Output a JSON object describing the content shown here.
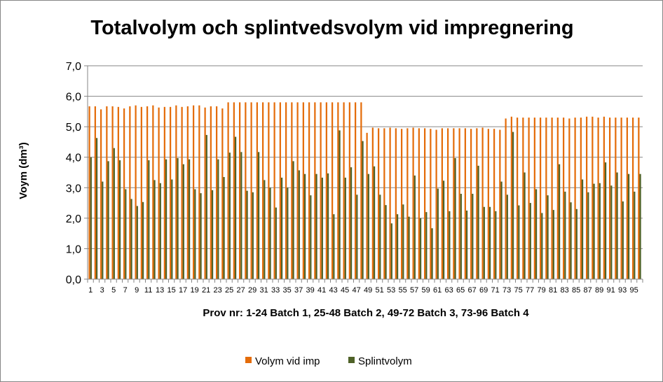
{
  "chart_data": {
    "type": "bar",
    "title": "Totalvolym och splintvedsvolym vid impregnering",
    "xlabel": "Prov nr:  1-24 Batch 1, 25-48 Batch 2, 49-72 Batch 3, 73-96 Batch 4",
    "ylabel": "Voym (dm³)",
    "ylim": [
      0,
      7
    ],
    "yticks": [
      "0,0",
      "1,0",
      "2,0",
      "3,0",
      "4,0",
      "5,0",
      "6,0",
      "7,0"
    ],
    "grid": true,
    "legend_position": "bottom",
    "categories": [
      1,
      2,
      3,
      4,
      5,
      6,
      7,
      8,
      9,
      10,
      11,
      12,
      13,
      14,
      15,
      16,
      17,
      18,
      19,
      20,
      21,
      22,
      23,
      24,
      25,
      26,
      27,
      28,
      29,
      30,
      31,
      32,
      33,
      34,
      35,
      36,
      37,
      38,
      39,
      40,
      41,
      42,
      43,
      44,
      45,
      46,
      47,
      48,
      49,
      50,
      51,
      52,
      53,
      54,
      55,
      56,
      57,
      58,
      59,
      60,
      61,
      62,
      63,
      64,
      65,
      66,
      67,
      68,
      69,
      70,
      71,
      72,
      73,
      74,
      75,
      76,
      77,
      78,
      79,
      80,
      81,
      82,
      83,
      84,
      85,
      86,
      87,
      88,
      89,
      90,
      91,
      92,
      93,
      94,
      95,
      96
    ],
    "tick_labels": [
      "1",
      "3",
      "5",
      "7",
      "9",
      "11",
      "13",
      "15",
      "17",
      "19",
      "21",
      "23",
      "25",
      "27",
      "29",
      "31",
      "33",
      "35",
      "37",
      "39",
      "41",
      "43",
      "45",
      "47",
      "49",
      "51",
      "53",
      "55",
      "57",
      "59",
      "61",
      "63",
      "65",
      "67",
      "69",
      "71",
      "73",
      "75",
      "77",
      "79",
      "81",
      "83",
      "85",
      "87",
      "89",
      "91",
      "93",
      "95"
    ],
    "series": [
      {
        "name": "Volym vid imp",
        "color": "#E46C0A",
        "values": [
          5.67,
          5.67,
          5.57,
          5.67,
          5.67,
          5.65,
          5.6,
          5.67,
          5.7,
          5.65,
          5.67,
          5.7,
          5.63,
          5.65,
          5.65,
          5.7,
          5.65,
          5.67,
          5.7,
          5.7,
          5.63,
          5.67,
          5.67,
          5.6,
          5.8,
          5.8,
          5.8,
          5.8,
          5.8,
          5.8,
          5.8,
          5.8,
          5.8,
          5.8,
          5.8,
          5.8,
          5.8,
          5.8,
          5.8,
          5.8,
          5.8,
          5.8,
          5.8,
          5.8,
          5.8,
          5.8,
          5.8,
          5.8,
          4.8,
          4.97,
          4.95,
          4.95,
          4.97,
          4.95,
          4.93,
          4.95,
          4.97,
          4.95,
          4.95,
          4.93,
          4.9,
          4.95,
          4.95,
          4.95,
          4.95,
          4.95,
          4.93,
          4.95,
          4.97,
          4.93,
          4.93,
          4.9,
          5.27,
          5.33,
          5.3,
          5.3,
          5.3,
          5.3,
          5.3,
          5.3,
          5.3,
          5.3,
          5.3,
          5.27,
          5.3,
          5.3,
          5.33,
          5.33,
          5.3,
          5.33,
          5.3,
          5.3,
          5.3,
          5.3,
          5.3,
          5.3
        ]
      },
      {
        "name": "Splintvolym",
        "color": "#4F6228",
        "values": [
          4.0,
          4.63,
          3.2,
          3.87,
          4.3,
          3.9,
          2.95,
          2.63,
          2.4,
          2.53,
          3.9,
          3.25,
          3.15,
          3.93,
          3.27,
          3.97,
          3.77,
          3.93,
          2.95,
          2.82,
          4.73,
          2.92,
          3.93,
          3.35,
          4.15,
          4.67,
          4.17,
          2.9,
          2.85,
          4.17,
          3.25,
          3.0,
          2.35,
          3.33,
          3.0,
          3.87,
          3.57,
          3.45,
          2.75,
          3.45,
          3.33,
          3.47,
          2.13,
          4.88,
          3.33,
          3.67,
          2.77,
          4.53,
          3.45,
          3.7,
          2.77,
          2.43,
          1.83,
          2.13,
          2.45,
          2.05,
          3.4,
          2.0,
          2.2,
          1.67,
          2.97,
          3.23,
          2.23,
          3.97,
          2.8,
          2.25,
          2.8,
          3.72,
          2.37,
          2.37,
          2.23,
          3.2,
          2.77,
          4.83,
          2.42,
          3.5,
          2.5,
          2.95,
          2.17,
          2.75,
          2.27,
          3.77,
          2.87,
          2.52,
          2.3,
          3.27,
          2.85,
          3.13,
          3.15,
          3.83,
          3.07,
          3.5,
          2.55,
          3.45,
          2.87,
          3.45
        ]
      }
    ]
  }
}
